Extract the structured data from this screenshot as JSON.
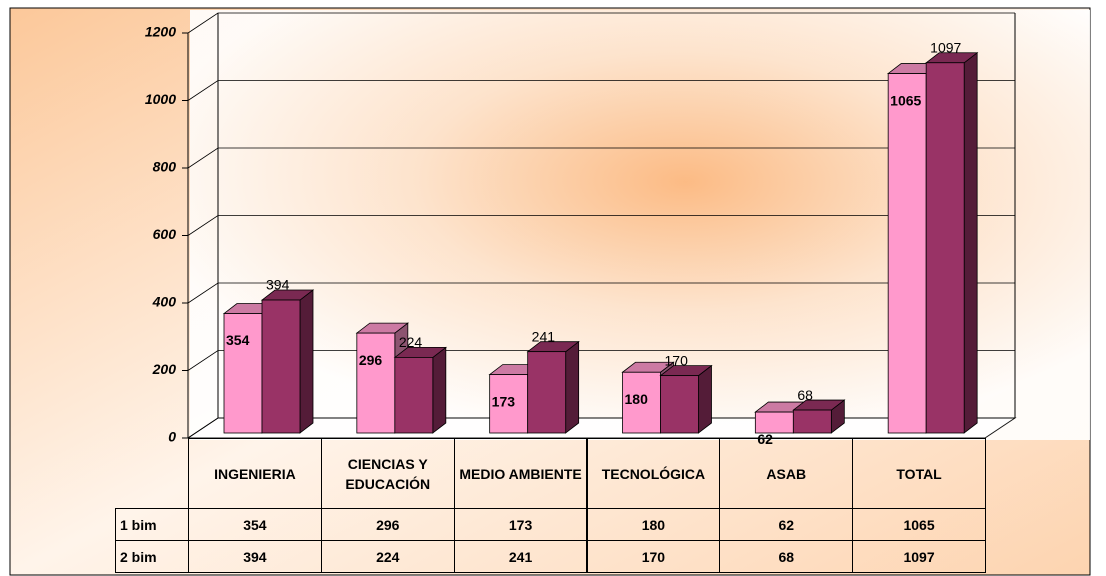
{
  "chart_data": {
    "type": "bar3d",
    "categories": [
      "INGENIERIA",
      "CIENCIAS Y EDUCACIÓN",
      "MEDIO AMBIENTE",
      "TECNOLÓGICA",
      "ASAB",
      "TOTAL"
    ],
    "series": [
      {
        "name": "1 bim",
        "color": "#ff99cc",
        "values": [
          354,
          296,
          173,
          180,
          62,
          1065
        ]
      },
      {
        "name": "2 bim",
        "color": "#993366",
        "values": [
          394,
          224,
          241,
          170,
          68,
          1097
        ]
      }
    ],
    "ylim": [
      0,
      1200
    ],
    "yticks": [
      0,
      200,
      400,
      600,
      800,
      1000,
      1200
    ],
    "grid": true,
    "data_table": true
  }
}
